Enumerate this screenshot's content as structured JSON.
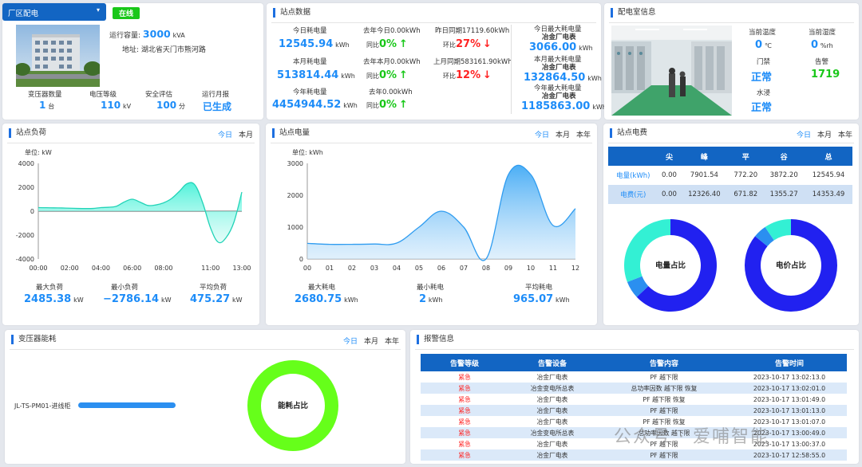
{
  "site": {
    "select": "厂区配电",
    "status": "在线",
    "capacity_label": "运行容量:",
    "capacity_value": "3000",
    "capacity_unit": "kVA",
    "address_label": "地址:",
    "address_value": "湖北省天门市熊河路",
    "stats": [
      {
        "label": "变压器数量",
        "value": "1",
        "unit": "台"
      },
      {
        "label": "电压等级",
        "value": "110",
        "unit": "kV"
      },
      {
        "label": "安全评估",
        "value": "100",
        "unit": "分"
      },
      {
        "label": "运行月报",
        "value": "已生成",
        "unit": ""
      }
    ]
  },
  "station_data": {
    "title": "站点数据",
    "today_label": "今日耗电量",
    "today_value": "12545.94",
    "today_unit": "kWh",
    "month_label": "本月耗电量",
    "month_value": "513814.44",
    "month_unit": "kWh",
    "year_label": "今年耗电量",
    "year_value": "4454944.52",
    "year_unit": "kWh",
    "ly_today_label": "去年今日0.00kWh",
    "ly_month_label": "去年本月0.00kWh",
    "ly_year_label": "去年0.00kWh",
    "yoy_label": "同比",
    "yoy_value": "0%",
    "up_arrow": "↑",
    "down_arrow": "↓",
    "yday_label": "昨日同期17119.60kWh",
    "lmonth_label": "上月同期583161.90kWh",
    "mom_label": "环比",
    "mom_day": "27%",
    "mom_month": "12%",
    "max_today_label": "今日最大耗电量",
    "max_today_sub": "冶金厂电表",
    "max_today_value": "3066.00",
    "max_month_label": "本月最大耗电量",
    "max_month_sub": "冶金厂电表",
    "max_month_value": "132864.50",
    "max_year_label": "今年最大耗电量",
    "max_year_sub": "冶金厂电表",
    "max_year_value": "1185863.00",
    "unit": "kWh"
  },
  "room": {
    "title": "配电室信息",
    "temp_label": "当前温度",
    "temp_value": "0",
    "temp_unit": "℃",
    "hum_label": "当前湿度",
    "hum_value": "0",
    "hum_unit": "%rh",
    "door_label": "门禁",
    "door_value": "正常",
    "alarm_label": "告警",
    "alarm_value": "1719",
    "water_label": "水浸",
    "water_value": "正常"
  },
  "load": {
    "title": "站点负荷",
    "tabs": [
      "今日",
      "本月"
    ],
    "unit_label": "单位: kW",
    "max_label": "最大负荷",
    "max_value": "2485.38",
    "min_label": "最小负荷",
    "min_value": "−2786.14",
    "avg_label": "平均负荷",
    "avg_value": "475.27",
    "unit": "kW"
  },
  "energy": {
    "title": "站点电量",
    "tabs": [
      "今日",
      "本月",
      "本年"
    ],
    "unit_label": "单位: kWh",
    "max_label": "最大耗电",
    "max_value": "2680.75",
    "min_label": "最小耗电",
    "min_value": "2",
    "avg_label": "平均耗电",
    "avg_value": "965.07",
    "unit": "kWh"
  },
  "fee": {
    "title": "站点电费",
    "tabs": [
      "今日",
      "本月",
      "本年"
    ],
    "headers": [
      "",
      "尖",
      "峰",
      "平",
      "谷",
      "总"
    ],
    "rows": [
      {
        "name": "电量(kWh)",
        "cells": [
          "0.00",
          "7901.54",
          "772.20",
          "3872.20",
          "12545.94"
        ]
      },
      {
        "name": "电费(元)",
        "cells": [
          "0.00",
          "12326.40",
          "671.82",
          "1355.27",
          "14353.49"
        ]
      }
    ],
    "donut1_label": "电量占比",
    "donut2_label": "电价占比"
  },
  "transformer": {
    "title": "变压器能耗",
    "tabs": [
      "今日",
      "本月",
      "本年"
    ],
    "item": "JL-TS-PM01-进线柜",
    "donut_label": "能耗占比"
  },
  "alarm": {
    "title": "报警信息",
    "headers": [
      "告警等级",
      "告警设备",
      "告警内容",
      "告警时间"
    ],
    "rows": [
      [
        "紧急",
        "冶金厂电表",
        "PF 越下限",
        "2023-10-17 13:02:13.0"
      ],
      [
        "紧急",
        "冶金变电所总表",
        "总功率因数 越下限 恢复",
        "2023-10-17 13:02:01.0"
      ],
      [
        "紧急",
        "冶金厂电表",
        "PF 越下限 恢复",
        "2023-10-17 13:01:49.0"
      ],
      [
        "紧急",
        "冶金厂电表",
        "PF 越下限",
        "2023-10-17 13:01:13.0"
      ],
      [
        "紧急",
        "冶金厂电表",
        "PF 越下限 恢复",
        "2023-10-17 13:01:07.0"
      ],
      [
        "紧急",
        "冶金变电所总表",
        "总功率因数 越下限",
        "2023-10-17 13:00:49.0"
      ],
      [
        "紧急",
        "冶金厂电表",
        "PF 越下限",
        "2023-10-17 13:00:37.0"
      ],
      [
        "紧急",
        "冶金厂电表",
        "PF 越下限",
        "2023-10-17 12:58:55.0"
      ]
    ]
  },
  "watermark": "公众号 · 爱哺智能",
  "chart_data": [
    {
      "type": "area",
      "title": "站点负荷",
      "ylabel": "单位: kW",
      "x": [
        "00:00",
        "00:30",
        "01:00",
        "01:30",
        "02:00",
        "02:30",
        "03:00",
        "03:30",
        "04:00",
        "04:30",
        "05:00",
        "05:30",
        "06:00",
        "06:30",
        "07:00",
        "07:30",
        "08:00",
        "08:30",
        "09:00",
        "09:30",
        "10:00",
        "10:30",
        "11:00",
        "11:30",
        "12:00",
        "12:30",
        "13:00"
      ],
      "xticks": [
        "00:00",
        "02:00",
        "04:00",
        "06:00",
        "08:00",
        "11:00",
        "13:00"
      ],
      "y": [
        300,
        290,
        280,
        270,
        250,
        230,
        220,
        230,
        300,
        330,
        420,
        780,
        1000,
        760,
        480,
        520,
        700,
        1050,
        1650,
        2300,
        2200,
        700,
        -1400,
        -2600,
        -2200,
        -900,
        1600
      ],
      "ylim": [
        -4000,
        4000
      ],
      "yticks": [
        -4000,
        -2000,
        0,
        2000,
        4000
      ]
    },
    {
      "type": "area",
      "title": "站点电量",
      "ylabel": "单位: kWh",
      "x": [
        "00",
        "01",
        "02",
        "03",
        "04",
        "05",
        "06",
        "07",
        "08",
        "09",
        "10",
        "11",
        "12"
      ],
      "y": [
        490,
        460,
        460,
        470,
        500,
        1000,
        1500,
        1000,
        5,
        2650,
        2650,
        1050,
        1580
      ],
      "ylim": [
        0,
        3000
      ],
      "yticks": [
        0,
        1000,
        2000,
        3000
      ]
    },
    {
      "type": "pie",
      "title": "电量占比",
      "labels": [
        "尖",
        "峰",
        "平",
        "谷"
      ],
      "values": [
        0.0,
        7901.54,
        772.2,
        3872.2
      ]
    },
    {
      "type": "pie",
      "title": "电价占比",
      "labels": [
        "尖",
        "峰",
        "平",
        "谷"
      ],
      "values": [
        0.0,
        12326.4,
        671.82,
        1355.27
      ]
    },
    {
      "type": "pie",
      "title": "能耗占比",
      "labels": [
        "JL-TS-PM01-进线柜"
      ],
      "values": [
        1
      ]
    }
  ],
  "colors": {
    "accent": "#1d8cf8",
    "green": "#19c719",
    "red": "#ff2222",
    "header_blue": "#1265c3",
    "teal": "#33f0d4",
    "indigo": "#2121f0",
    "lime": "#66ff1a"
  }
}
